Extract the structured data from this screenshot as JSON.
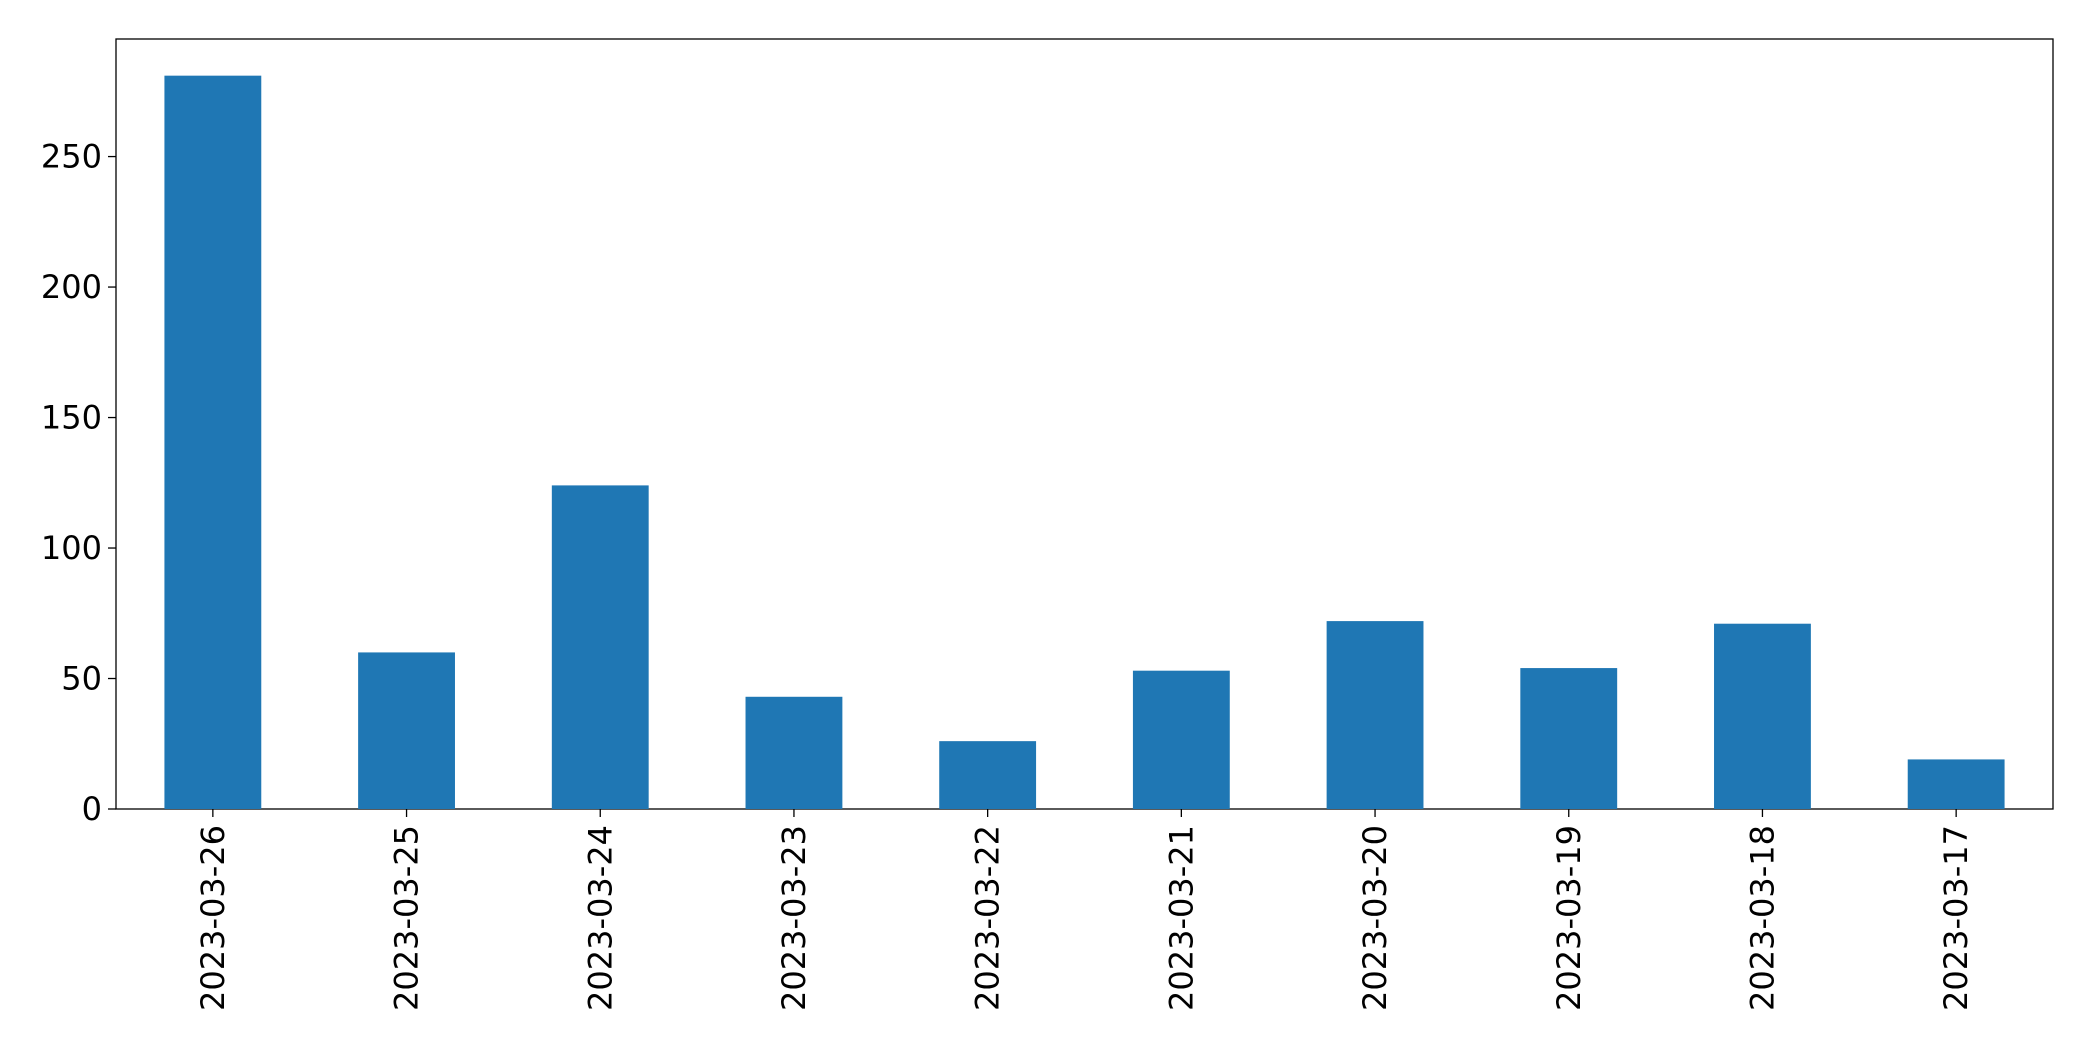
{
  "chart_data": {
    "type": "bar",
    "categories": [
      "2023-03-26",
      "2023-03-25",
      "2023-03-24",
      "2023-03-23",
      "2023-03-22",
      "2023-03-21",
      "2023-03-20",
      "2023-03-19",
      "2023-03-18",
      "2023-03-17"
    ],
    "values": [
      281,
      60,
      124,
      43,
      26,
      53,
      72,
      54,
      71,
      19
    ],
    "color": "#1f77b4",
    "ylim": [
      0,
      295.05
    ],
    "yticks": [
      0,
      50,
      100,
      150,
      200,
      250
    ],
    "grid": false
  }
}
